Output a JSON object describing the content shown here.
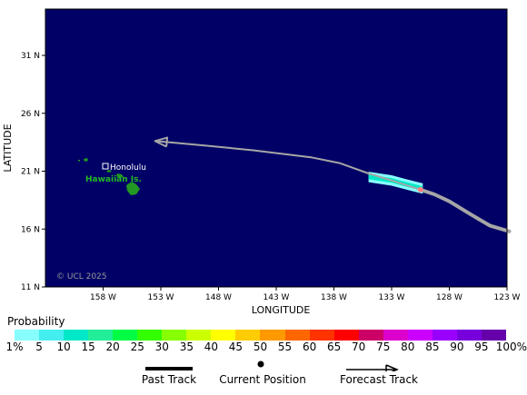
{
  "map": {
    "x_axis_title": "LONGITUDE",
    "y_axis_title": "LATITUDE",
    "lon_ticks": [
      {
        "value": -158,
        "label": "158 W"
      },
      {
        "value": -153,
        "label": "153 W"
      },
      {
        "value": -148,
        "label": "148 W"
      },
      {
        "value": -143,
        "label": "143 W"
      },
      {
        "value": -138,
        "label": "138 W"
      },
      {
        "value": -133,
        "label": "133 W"
      },
      {
        "value": -128,
        "label": "128 W"
      },
      {
        "value": -123,
        "label": "123 W"
      }
    ],
    "lat_ticks": [
      {
        "value": 11,
        "label": "11 N"
      },
      {
        "value": 16,
        "label": "16 N"
      },
      {
        "value": 21,
        "label": "21 N"
      },
      {
        "value": 26,
        "label": "26 N"
      },
      {
        "value": 31,
        "label": "31 N"
      }
    ],
    "lon_range": [
      -163,
      -123
    ],
    "lat_range": [
      11,
      35
    ],
    "place_label": "Honolulu",
    "region_label": "Hawaiian Is.",
    "copyright": "© UCL 2025",
    "ocean_color": "#000066",
    "land_color": "#229922",
    "track_color": "#a6a6a6",
    "past_track": [
      [
        -122.8,
        15.8
      ],
      [
        -124.5,
        16.3
      ],
      [
        -126.2,
        17.3
      ],
      [
        -128.0,
        18.4
      ],
      [
        -129.3,
        19.0
      ],
      [
        -130.5,
        19.4
      ]
    ],
    "current_position": [
      -130.5,
      19.4
    ],
    "forecast_track": [
      [
        -130.5,
        19.4
      ],
      [
        -133.0,
        20.2
      ],
      [
        -135.0,
        20.8
      ],
      [
        -137.5,
        21.7
      ],
      [
        -140.0,
        22.2
      ],
      [
        -145.0,
        22.8
      ],
      [
        -149.0,
        23.2
      ],
      [
        -153.5,
        23.6
      ]
    ]
  },
  "legend": {
    "probability_title": "Probability",
    "probability_labels": [
      "1%",
      "5",
      "10",
      "15",
      "20",
      "25",
      "30",
      "35",
      "40",
      "45",
      "50",
      "55",
      "60",
      "65",
      "70",
      "75",
      "80",
      "85",
      "90",
      "95",
      "100%"
    ],
    "probability_colors": [
      "#88ffff",
      "#44eeee",
      "#00e8c8",
      "#22ee99",
      "#00ff44",
      "#33ff00",
      "#88ff00",
      "#ccff00",
      "#ffff00",
      "#ffcc00",
      "#ff9900",
      "#ff6600",
      "#ff3300",
      "#ff0000",
      "#cc0066",
      "#dd00cc",
      "#cc00ff",
      "#9900ff",
      "#7700dd",
      "#6600aa"
    ],
    "past_track_label": "Past Track",
    "current_position_label": "Current Position",
    "forecast_track_label": "Forecast Track"
  }
}
